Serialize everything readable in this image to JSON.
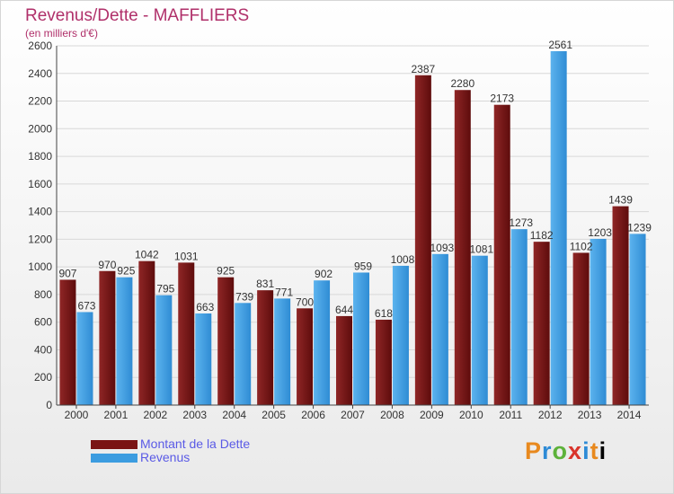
{
  "title": "Revenus/Dette - MAFFLIERS",
  "subtitle": "(en milliers d'€)",
  "logo": "Proxiti",
  "colors": {
    "dette": "#7a1414",
    "revenus": "#3c9ce0",
    "title": "#b0306a",
    "legend_text": "#5a5ae6",
    "grid": "#d8d8d8"
  },
  "chart_data": {
    "type": "bar",
    "categories": [
      "2000",
      "2001",
      "2002",
      "2003",
      "2004",
      "2005",
      "2006",
      "2007",
      "2008",
      "2009",
      "2010",
      "2011",
      "2012",
      "2013",
      "2014"
    ],
    "series": [
      {
        "name": "Montant de la Dette",
        "values": [
          907,
          970,
          1042,
          1031,
          925,
          831,
          700,
          644,
          618,
          2387,
          2280,
          2173,
          1182,
          1102,
          1439
        ]
      },
      {
        "name": "Revenus",
        "values": [
          673,
          925,
          795,
          663,
          739,
          771,
          902,
          959,
          1008,
          1093,
          1081,
          1273,
          2561,
          1203,
          1239
        ]
      }
    ],
    "ylim": [
      0,
      2600
    ],
    "yticks": [
      0,
      200,
      400,
      600,
      800,
      1000,
      1200,
      1400,
      1600,
      1800,
      2000,
      2200,
      2400,
      2600
    ],
    "grid": true,
    "legend": "bottom-left"
  }
}
